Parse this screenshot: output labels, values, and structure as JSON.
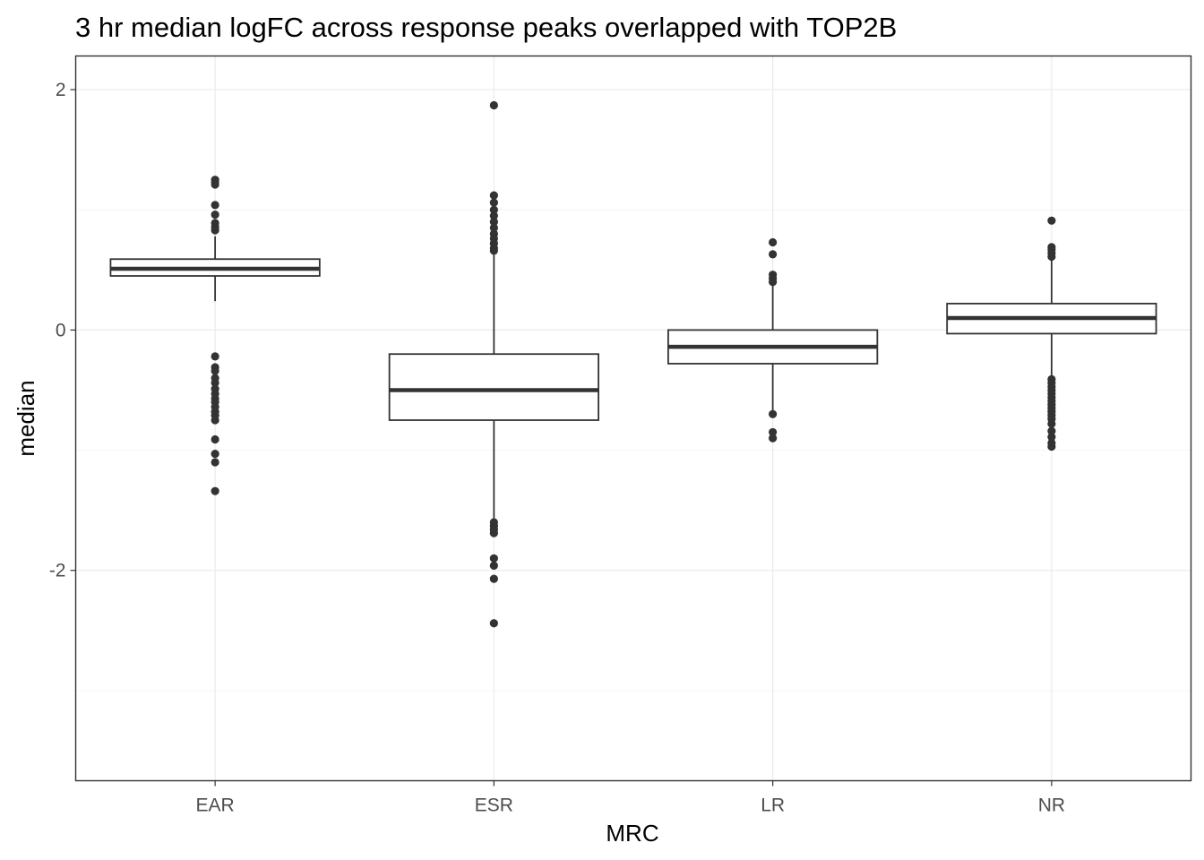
{
  "chart_data": {
    "type": "boxplot",
    "title": "3 hr median logFC across response peaks overlapped with TOP2B",
    "xlabel": "MRC",
    "ylabel": "median",
    "ylim": [
      -3.75,
      2.28
    ],
    "yticks": [
      -2,
      0,
      2
    ],
    "ytick_labels": [
      "-2",
      "0",
      "2"
    ],
    "grid": true,
    "theme": "bw",
    "colors": {
      "box_stroke": "#333333",
      "point": "#333333",
      "grid_major": "#ebebeb",
      "grid_minor": "#f5f5f5",
      "panel_border": "#333333"
    },
    "categories": [
      "EAR",
      "ESR",
      "LR",
      "NR"
    ],
    "boxes": [
      {
        "category": "EAR",
        "q1": 0.45,
        "median": 0.51,
        "q3": 0.59,
        "whisker_low": 0.24,
        "whisker_high": 0.78,
        "outliers": [
          1.25,
          1.23,
          1.21,
          1.04,
          0.96,
          0.89,
          0.86,
          0.83,
          -0.22,
          -0.31,
          -0.34,
          -0.4,
          -0.44,
          -0.49,
          -0.53,
          -0.57,
          -0.6,
          -0.64,
          -0.68,
          -0.71,
          -0.75,
          -0.91,
          -1.03,
          -1.1,
          -1.34
        ]
      },
      {
        "category": "ESR",
        "q1": -0.75,
        "median": -0.5,
        "q3": -0.2,
        "whisker_low": -1.57,
        "whisker_high": 0.64,
        "outliers": [
          1.87,
          1.12,
          1.06,
          1.0,
          0.95,
          0.9,
          0.85,
          0.8,
          0.76,
          0.72,
          0.68,
          0.66,
          -1.6,
          -1.63,
          -1.66,
          -1.69,
          -1.9,
          -1.96,
          -2.07,
          -2.44
        ]
      },
      {
        "category": "LR",
        "q1": -0.28,
        "median": -0.14,
        "q3": 0.0,
        "whisker_low": -0.69,
        "whisker_high": 0.38,
        "outliers": [
          0.73,
          0.63,
          0.46,
          0.43,
          0.4,
          -0.7,
          -0.85,
          -0.9
        ]
      },
      {
        "category": "NR",
        "q1": -0.03,
        "median": 0.1,
        "q3": 0.22,
        "whisker_low": -0.39,
        "whisker_high": 0.59,
        "outliers": [
          0.91,
          0.69,
          0.67,
          0.64,
          0.61,
          -0.41,
          -0.44,
          -0.47,
          -0.5,
          -0.53,
          -0.56,
          -0.59,
          -0.62,
          -0.65,
          -0.68,
          -0.71,
          -0.74,
          -0.78,
          -0.84,
          -0.89,
          -0.94,
          -0.97
        ]
      }
    ]
  }
}
